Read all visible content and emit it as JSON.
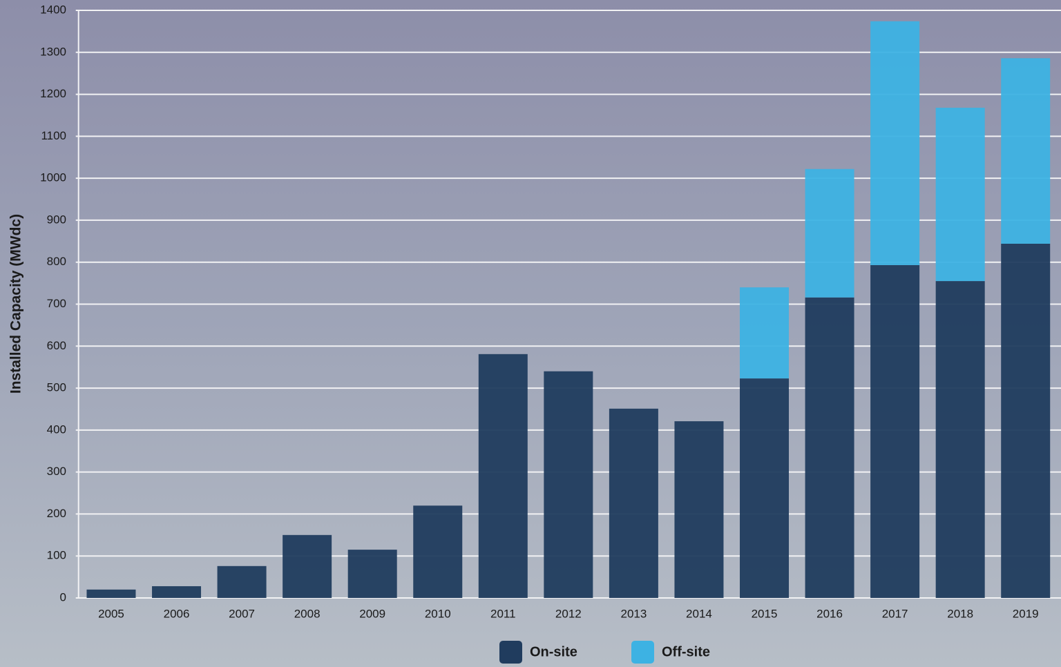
{
  "chart_data": {
    "type": "stacked_bar",
    "y_label": "Installed Capacity (MWdc)",
    "categories": [
      "2005",
      "2006",
      "2007",
      "2008",
      "2009",
      "2010",
      "2011",
      "2012",
      "2013",
      "2014",
      "2015",
      "2016",
      "2017",
      "2018",
      "2019"
    ],
    "series": [
      {
        "name": "On-site",
        "color": "#203c5e",
        "values": [
          20,
          28,
          76,
          150,
          115,
          220,
          581,
          540,
          451,
          421,
          523,
          716,
          793,
          755,
          844
        ]
      },
      {
        "name": "Off-site",
        "color": "#3db2e3",
        "values": [
          0,
          0,
          0,
          0,
          0,
          0,
          0,
          0,
          0,
          0,
          217,
          306,
          581,
          413,
          442
        ]
      }
    ],
    "ylim": [
      0,
      1400
    ],
    "yticks": [
      0,
      100,
      200,
      300,
      400,
      500,
      600,
      700,
      800,
      900,
      1000,
      1100,
      1200,
      1300,
      1400
    ],
    "grid": true
  }
}
